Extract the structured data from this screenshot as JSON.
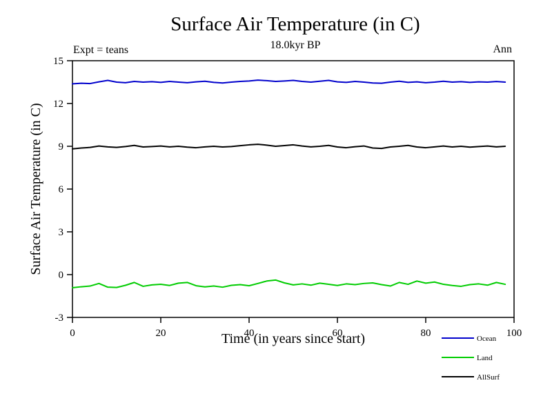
{
  "page": {
    "background_color": "#ffffff"
  },
  "chart_data": {
    "type": "line",
    "title": "Surface Air Temperature (in C)",
    "annotations": {
      "experiment": "Expt = teans",
      "time_period": "18.0kyr BP",
      "season": "Ann"
    },
    "xlabel": "Time (in years since start)",
    "ylabel": "Surface Air Temperature (in C)",
    "xlim": [
      0,
      100
    ],
    "ylim": [
      -3,
      15
    ],
    "xticks": [
      0,
      20,
      40,
      60,
      80,
      100
    ],
    "yticks": [
      -3,
      0,
      3,
      6,
      9,
      12,
      15
    ],
    "grid": false,
    "legend_position": "bottom-right",
    "axis_color": "#000000",
    "x": [
      0,
      2,
      4,
      6,
      8,
      10,
      12,
      14,
      16,
      18,
      20,
      22,
      24,
      26,
      28,
      30,
      32,
      34,
      36,
      38,
      40,
      42,
      44,
      46,
      48,
      50,
      52,
      54,
      56,
      58,
      60,
      62,
      64,
      66,
      68,
      70,
      72,
      74,
      76,
      78,
      80,
      82,
      84,
      86,
      88,
      90,
      92,
      94,
      96,
      98
    ],
    "series": [
      {
        "name": "Ocean",
        "color": "#0000cc",
        "values": [
          13.38,
          13.42,
          13.4,
          13.52,
          13.62,
          13.5,
          13.46,
          13.55,
          13.5,
          13.53,
          13.48,
          13.55,
          13.5,
          13.46,
          13.52,
          13.56,
          13.48,
          13.44,
          13.5,
          13.55,
          13.58,
          13.64,
          13.6,
          13.55,
          13.58,
          13.62,
          13.55,
          13.5,
          13.56,
          13.62,
          13.52,
          13.48,
          13.55,
          13.5,
          13.44,
          13.42,
          13.5,
          13.56,
          13.48,
          13.52,
          13.46,
          13.5,
          13.56,
          13.5,
          13.53,
          13.48,
          13.52,
          13.5,
          13.54,
          13.5
        ]
      },
      {
        "name": "Land",
        "color": "#00cc00",
        "values": [
          -0.92,
          -0.85,
          -0.8,
          -0.62,
          -0.88,
          -0.9,
          -0.75,
          -0.55,
          -0.82,
          -0.72,
          -0.68,
          -0.76,
          -0.6,
          -0.55,
          -0.78,
          -0.86,
          -0.8,
          -0.88,
          -0.75,
          -0.7,
          -0.78,
          -0.62,
          -0.45,
          -0.38,
          -0.58,
          -0.72,
          -0.65,
          -0.74,
          -0.6,
          -0.68,
          -0.76,
          -0.65,
          -0.7,
          -0.62,
          -0.58,
          -0.7,
          -0.8,
          -0.55,
          -0.68,
          -0.45,
          -0.6,
          -0.52,
          -0.68,
          -0.76,
          -0.82,
          -0.7,
          -0.65,
          -0.74,
          -0.55,
          -0.68
        ]
      },
      {
        "name": "AllSurf",
        "color": "#000000",
        "values": [
          8.82,
          8.88,
          8.92,
          9.02,
          8.96,
          8.92,
          8.98,
          9.06,
          8.95,
          8.98,
          9.02,
          8.96,
          9.0,
          8.94,
          8.9,
          8.96,
          9.0,
          8.95,
          8.98,
          9.04,
          9.1,
          9.14,
          9.08,
          9.0,
          9.05,
          9.1,
          9.02,
          8.96,
          9.0,
          9.06,
          8.95,
          8.9,
          8.97,
          9.02,
          8.88,
          8.85,
          8.95,
          9.0,
          9.06,
          8.95,
          8.9,
          8.96,
          9.02,
          8.95,
          9.0,
          8.94,
          8.98,
          9.02,
          8.96,
          9.0
        ]
      }
    ]
  }
}
